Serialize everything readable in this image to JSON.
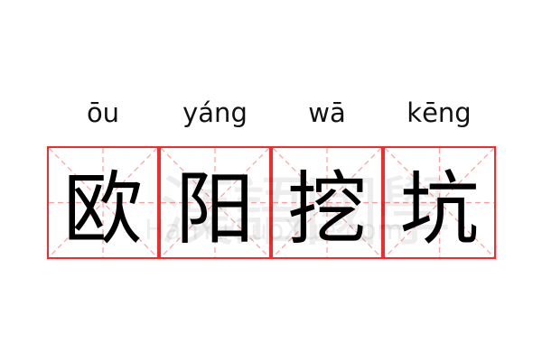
{
  "characters": [
    {
      "pinyin": "ōu",
      "hanzi": "欧"
    },
    {
      "pinyin": "yáng",
      "hanzi": "阳"
    },
    {
      "pinyin": "wā",
      "hanzi": "挖"
    },
    {
      "pinyin": "kēng",
      "hanzi": "坑"
    }
  ],
  "watermark": {
    "chinese": "漢語國學",
    "latin": "HanYuGuoXue.com"
  },
  "colors": {
    "grid_border": "#f52a2a",
    "guide_lines": "#f8a0a0",
    "text": "#000000"
  }
}
